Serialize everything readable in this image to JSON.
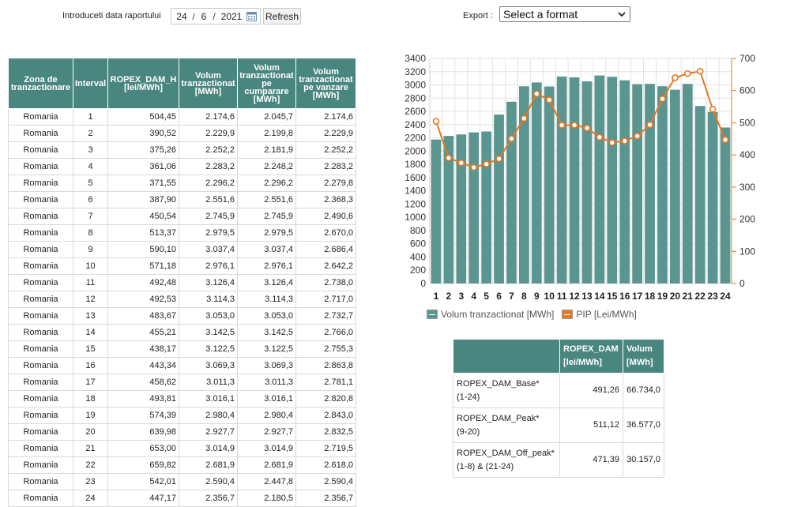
{
  "header": {
    "date_label": "Introduceti data raportului",
    "date": {
      "day": "24",
      "month": "6",
      "year": "2021",
      "separator": "/"
    },
    "refresh_label": "Refresh",
    "export_label": "Export :",
    "export_selected": "Select a format"
  },
  "table": {
    "headers": [
      "Zona de tranzactionare",
      "Interval",
      "ROPEX_DAM_H [lei/MWh]",
      "Volum tranzactionat [MWh]",
      "Volum tranzactionat pe cumparare [MWh]",
      "Volum tranzactionat pe vanzare [MWh]"
    ],
    "rows": [
      [
        "Romania",
        "1",
        "504,45",
        "2.174,6",
        "2.045,7",
        "2.174,6"
      ],
      [
        "Romania",
        "2",
        "390,52",
        "2.229,9",
        "2.199,8",
        "2.229,9"
      ],
      [
        "Romania",
        "3",
        "375,26",
        "2.252,2",
        "2.181,9",
        "2.252,2"
      ],
      [
        "Romania",
        "4",
        "361,06",
        "2.283,2",
        "2.248,2",
        "2.283,2"
      ],
      [
        "Romania",
        "5",
        "371,55",
        "2.296,2",
        "2.296,2",
        "2.279,8"
      ],
      [
        "Romania",
        "6",
        "387,90",
        "2.551,6",
        "2.551,6",
        "2.368,3"
      ],
      [
        "Romania",
        "7",
        "450,54",
        "2.745,9",
        "2.745,9",
        "2.490,6"
      ],
      [
        "Romania",
        "8",
        "513,37",
        "2.979,5",
        "2.979,5",
        "2.670,0"
      ],
      [
        "Romania",
        "9",
        "590,10",
        "3.037,4",
        "3.037,4",
        "2.686,4"
      ],
      [
        "Romania",
        "10",
        "571,18",
        "2.976,1",
        "2.976,1",
        "2.642,2"
      ],
      [
        "Romania",
        "11",
        "492,48",
        "3.126,4",
        "3.126,4",
        "2.738,0"
      ],
      [
        "Romania",
        "12",
        "492,53",
        "3.114,3",
        "3.114,3",
        "2.717,0"
      ],
      [
        "Romania",
        "13",
        "483,67",
        "3.053,0",
        "3.053,0",
        "2.732,7"
      ],
      [
        "Romania",
        "14",
        "455,21",
        "3.142,5",
        "3.142,5",
        "2.766,0"
      ],
      [
        "Romania",
        "15",
        "438,17",
        "3.122,5",
        "3.122,5",
        "2.755,3"
      ],
      [
        "Romania",
        "16",
        "443,34",
        "3.069,3",
        "3.069,3",
        "2.863,8"
      ],
      [
        "Romania",
        "17",
        "458,62",
        "3.011,3",
        "3.011,3",
        "2.781,1"
      ],
      [
        "Romania",
        "18",
        "493,81",
        "3.016,1",
        "3.016,1",
        "2.820,8"
      ],
      [
        "Romania",
        "19",
        "574,39",
        "2.980,4",
        "2.980,4",
        "2.843,0"
      ],
      [
        "Romania",
        "20",
        "639,98",
        "2.927,7",
        "2.927,7",
        "2.832,5"
      ],
      [
        "Romania",
        "21",
        "653,00",
        "3.014,9",
        "3.014,9",
        "2.719,5"
      ],
      [
        "Romania",
        "22",
        "659,82",
        "2.681,9",
        "2.681,9",
        "2.618,0"
      ],
      [
        "Romania",
        "23",
        "542,01",
        "2.590,4",
        "2.447,8",
        "2.590,4"
      ],
      [
        "Romania",
        "24",
        "447,17",
        "2.356,7",
        "2.180,5",
        "2.356,7"
      ]
    ]
  },
  "chart_data": {
    "type": "bar",
    "categories": [
      "1",
      "2",
      "3",
      "4",
      "5",
      "6",
      "7",
      "8",
      "9",
      "10",
      "11",
      "12",
      "13",
      "14",
      "15",
      "16",
      "17",
      "18",
      "19",
      "20",
      "21",
      "22",
      "23",
      "24"
    ],
    "series": [
      {
        "name": "Volum tranzactionat [MWh]",
        "type": "bar",
        "axis": "left",
        "values": [
          2174.6,
          2229.9,
          2252.2,
          2283.2,
          2296.2,
          2551.6,
          2745.9,
          2979.5,
          3037.4,
          2976.1,
          3126.4,
          3114.3,
          3053.0,
          3142.5,
          3122.5,
          3069.3,
          3011.3,
          3016.1,
          2980.4,
          2927.7,
          3014.9,
          2681.9,
          2590.4,
          2356.7
        ]
      },
      {
        "name": "PIP [Lei/MWh]",
        "type": "line",
        "axis": "right",
        "values": [
          504.45,
          390.52,
          375.26,
          361.06,
          371.55,
          387.9,
          450.54,
          513.37,
          590.1,
          571.18,
          492.48,
          492.53,
          483.67,
          455.21,
          438.17,
          443.34,
          458.62,
          493.81,
          574.39,
          639.98,
          653.0,
          659.82,
          542.01,
          447.17
        ]
      }
    ],
    "ylim_left": [
      0,
      3400
    ],
    "yticks_left": [
      0,
      200,
      400,
      600,
      800,
      1000,
      1200,
      1400,
      1600,
      1800,
      2000,
      2200,
      2400,
      2600,
      2800,
      3000,
      3200,
      3400
    ],
    "ylim_right": [
      0,
      700
    ],
    "yticks_right": [
      0,
      100,
      200,
      300,
      400,
      500,
      600,
      700
    ],
    "grid": true,
    "legend_position": "bottom",
    "colors": {
      "bar": "#5b9590",
      "line": "#e87722",
      "grid": "#e3e3e3",
      "right_axis": "#e87722"
    }
  },
  "summary": {
    "headers": [
      "",
      "ROPEX_DAM [lei/MWh]",
      "Volum [MWh]"
    ],
    "rows": [
      {
        "name_line1": "ROPEX_DAM_Base*",
        "name_line2": "(1-24)",
        "value": "491,26",
        "volume": "66.734,0"
      },
      {
        "name_line1": "ROPEX_DAM_Peak*",
        "name_line2": "(9-20)",
        "value": "511,12",
        "volume": "36.577,0"
      },
      {
        "name_line1": "ROPEX_DAM_Off_peak*",
        "name_line2": "(1-8) & (21-24)",
        "value": "471,39",
        "volume": "30.157,0"
      }
    ]
  },
  "colors": {
    "header_bg": "#4a8680",
    "header_text": "#ffffff"
  },
  "icons": {
    "calendar": "calendar-icon",
    "dropdown": "chevron-down-icon"
  }
}
